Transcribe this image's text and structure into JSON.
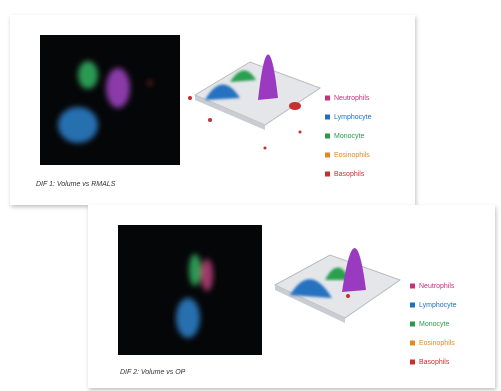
{
  "panels": [
    {
      "caption": "DIF 1: Volume vs RMALS",
      "legend": [
        {
          "label": "Neutrophils",
          "color": "#c8307a"
        },
        {
          "label": "Lymphocyte",
          "color": "#1f6fc0"
        },
        {
          "label": "Monocyte",
          "color": "#2a9a4a"
        },
        {
          "label": "Eosinophils",
          "color": "#e08a20"
        },
        {
          "label": "Basophils",
          "color": "#c83030"
        }
      ]
    },
    {
      "caption": "DIF 2: Volume vs OP",
      "legend": [
        {
          "label": "Neutrophils",
          "color": "#c8307a"
        },
        {
          "label": "Lymphocyte",
          "color": "#1f6fc0"
        },
        {
          "label": "Monocyte",
          "color": "#2a9a4a"
        },
        {
          "label": "Eosinophils",
          "color": "#e08a20"
        },
        {
          "label": "Basophils",
          "color": "#c83030"
        }
      ]
    }
  ]
}
